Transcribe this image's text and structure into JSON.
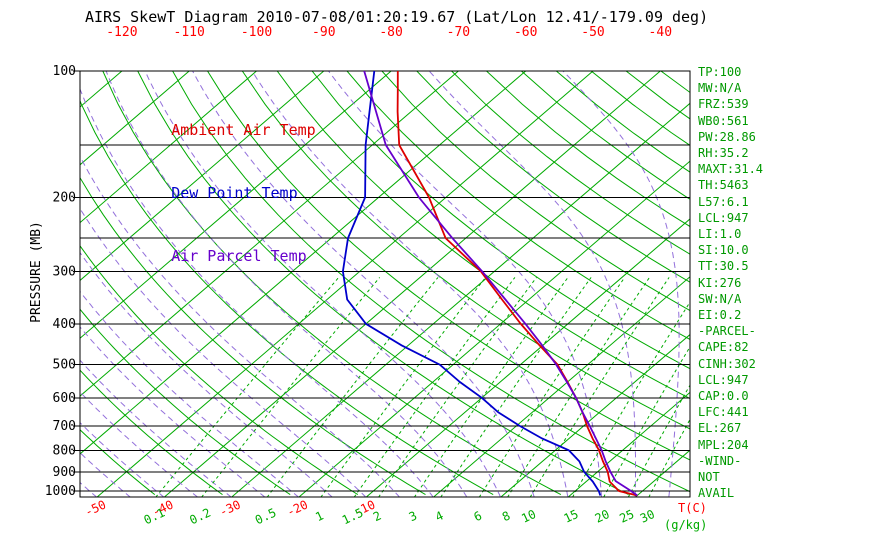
{
  "title": "AIRS SkewT Diagram 2010-07-08/01:20:19.67 (Lat/Lon 12.41/-179.09 deg)",
  "colors": {
    "line_green": "#00AA00",
    "stats_green": "#009900",
    "label_red": "#FF0000",
    "ambient_red": "#DD0000",
    "dewpoint_blue": "#0000CC",
    "parcel_purple": "#6600CC",
    "moist_violet": "#9370DB",
    "mixing_green": "#00AA00",
    "axis_black": "#000000"
  },
  "legend": [
    {
      "label": "Ambient Air Temp",
      "color": "#DD0000"
    },
    {
      "label": "Dew Point Temp",
      "color": "#0000CC"
    },
    {
      "label": "Air Parcel Temp",
      "color": "#6600CC"
    }
  ],
  "stats": [
    "TP:100",
    "MW:N/A",
    "FRZ:539",
    "WB0:561",
    "PW:28.86",
    "RH:35.2",
    "MAXT:31.4",
    "TH:5463",
    "L57:6.1",
    "LCL:947",
    "LI:1.0",
    "SI:10.0",
    "TT:30.5",
    "KI:276",
    "SW:N/A",
    "EI:0.2",
    "-PARCEL-",
    "CAPE:82",
    "CINH:302",
    "LCL:947",
    "CAP:0.0",
    "LFC:441",
    "EL:267",
    "MPL:204",
    "-WIND-",
    "NOT",
    "AVAIL"
  ],
  "chart_data": {
    "type": "line",
    "subtype": "skewT-logP",
    "y_axis": {
      "label": "PRESSURE (MB)",
      "scale": "log",
      "ticks": [
        100,
        200,
        300,
        400,
        500,
        600,
        700,
        800,
        900,
        1000
      ],
      "minor_lines": [
        150,
        250
      ],
      "range": [
        100,
        1035
      ]
    },
    "x_axis": {
      "t_unit_label": "T(C)",
      "w_unit_label": "(g/kg)",
      "top_ticks": [
        -120,
        -110,
        -100,
        -90,
        -80,
        -70,
        -60,
        -50,
        -40
      ],
      "bottom_ticks": [
        -50,
        -40,
        -30,
        -20,
        -10
      ]
    },
    "isotherms_C": {
      "min": -160,
      "max": 40,
      "step": 10
    },
    "dry_adiabats_theta_K": {
      "min": 230,
      "max": 450,
      "step": 10
    },
    "moist_adiabats_start_T_C": {
      "min": -120,
      "max": 45,
      "step": 5
    },
    "mixing_ratio_g_per_kg": [
      0.1,
      0.2,
      0.5,
      1,
      1.5,
      2,
      3,
      4,
      6,
      8,
      10,
      15,
      20,
      25,
      30
    ],
    "series_point_format": "[pressure_mb, temperature_C]",
    "series": [
      {
        "name": "Ambient Air Temp",
        "color": "#DD0000",
        "points": [
          [
            1025,
            30
          ],
          [
            1000,
            26.5
          ],
          [
            950,
            23.5
          ],
          [
            900,
            21.5
          ],
          [
            850,
            19
          ],
          [
            800,
            16.5
          ],
          [
            750,
            13.5
          ],
          [
            700,
            10.5
          ],
          [
            650,
            7.5
          ],
          [
            600,
            4
          ],
          [
            550,
            0
          ],
          [
            500,
            -4.5
          ],
          [
            450,
            -10.5
          ],
          [
            400,
            -17
          ],
          [
            350,
            -24
          ],
          [
            300,
            -32
          ],
          [
            250,
            -43
          ],
          [
            200,
            -52.5
          ],
          [
            150,
            -66
          ],
          [
            125,
            -72
          ],
          [
            110,
            -76
          ],
          [
            100,
            -79
          ]
        ]
      },
      {
        "name": "Dew Point Temp",
        "color": "#0000CC",
        "points": [
          [
            1025,
            24.5
          ],
          [
            1000,
            23.5
          ],
          [
            950,
            21
          ],
          [
            900,
            18
          ],
          [
            850,
            15.5
          ],
          [
            800,
            12
          ],
          [
            750,
            6
          ],
          [
            700,
            0.5
          ],
          [
            650,
            -5
          ],
          [
            600,
            -10
          ],
          [
            550,
            -16
          ],
          [
            500,
            -22
          ],
          [
            450,
            -31
          ],
          [
            400,
            -40
          ],
          [
            350,
            -47
          ],
          [
            300,
            -52.5
          ],
          [
            250,
            -57.5
          ],
          [
            200,
            -62
          ],
          [
            150,
            -71
          ],
          [
            100,
            -82.5
          ]
        ]
      },
      {
        "name": "Air Parcel Temp",
        "color": "#6600CC",
        "points": [
          [
            1025,
            30
          ],
          [
            1000,
            28.3
          ],
          [
            947,
            24.3
          ],
          [
            900,
            21.9
          ],
          [
            850,
            19.4
          ],
          [
            800,
            16.9
          ],
          [
            750,
            14
          ],
          [
            700,
            10.9
          ],
          [
            650,
            7.5
          ],
          [
            600,
            4
          ],
          [
            550,
            -0.1
          ],
          [
            500,
            -4.7
          ],
          [
            450,
            -10.1
          ],
          [
            400,
            -16.3
          ],
          [
            350,
            -23.5
          ],
          [
            300,
            -31.8
          ],
          [
            250,
            -42
          ],
          [
            200,
            -54
          ],
          [
            150,
            -68
          ],
          [
            100,
            -84
          ]
        ]
      }
    ]
  }
}
